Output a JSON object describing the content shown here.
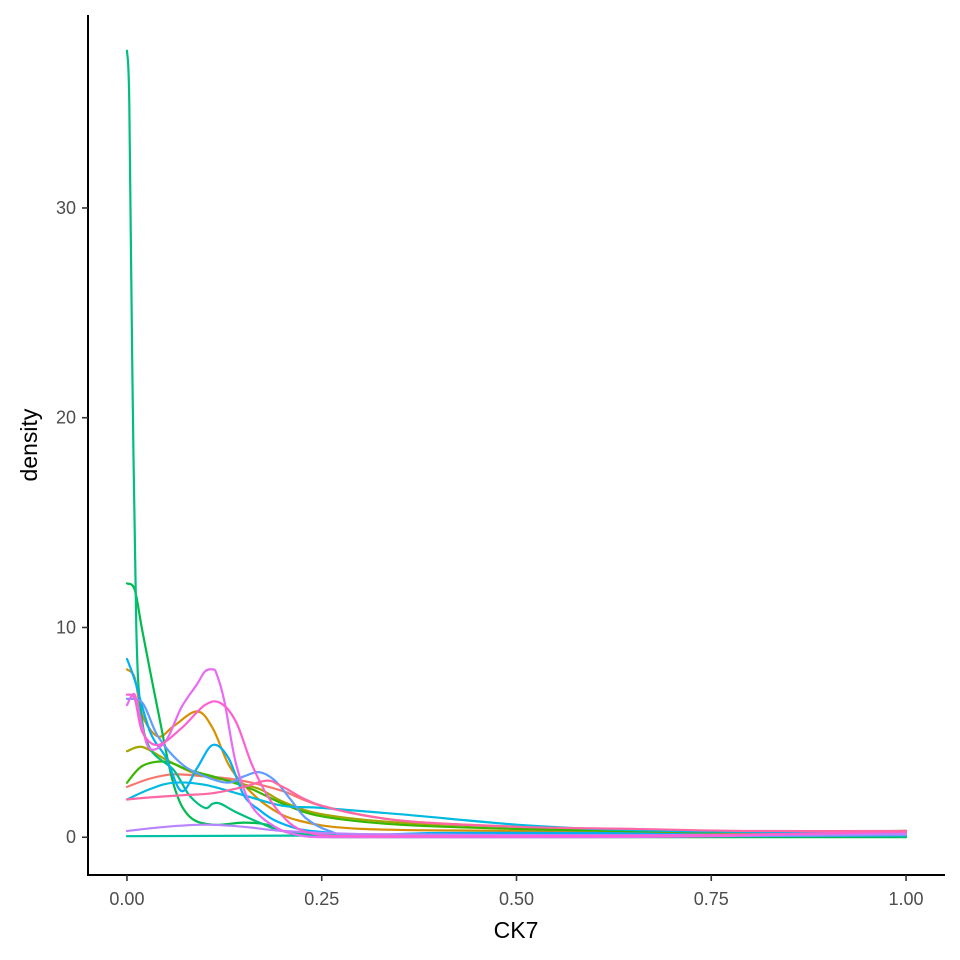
{
  "chart_data": {
    "type": "line",
    "title": "",
    "xlabel": "CK7",
    "ylabel": "density",
    "xlim": [
      -0.05,
      1.05
    ],
    "ylim": [
      -1.8,
      39.2
    ],
    "x_ticks": [
      0.0,
      0.25,
      0.5,
      0.75,
      1.0
    ],
    "x_tick_labels": [
      "0.00",
      "0.25",
      "0.50",
      "0.75",
      "1.00"
    ],
    "y_ticks": [
      0,
      10,
      20,
      30
    ],
    "y_tick_labels": [
      "0",
      "10",
      "20",
      "30"
    ],
    "grid": false,
    "legend": "none",
    "series": [
      {
        "color": "#F8766D",
        "x": [
          0.0,
          0.03,
          0.06,
          0.1,
          0.13,
          0.16,
          0.2,
          0.25,
          0.35,
          0.5,
          0.65,
          0.8,
          1.0
        ],
        "y": [
          2.4,
          2.8,
          3.0,
          2.9,
          2.8,
          2.6,
          2.2,
          1.5,
          0.8,
          0.5,
          0.3,
          0.25,
          0.3
        ]
      },
      {
        "color": "#D89000",
        "x": [
          0.0,
          0.01,
          0.02,
          0.04,
          0.06,
          0.09,
          0.11,
          0.13,
          0.15,
          0.18,
          0.22,
          0.3,
          0.5,
          0.75,
          1.0
        ],
        "y": [
          8.0,
          7.6,
          5.8,
          4.8,
          5.3,
          6.0,
          5.2,
          3.5,
          2.5,
          1.5,
          0.8,
          0.4,
          0.3,
          0.2,
          0.3
        ]
      },
      {
        "color": "#A3A500",
        "x": [
          0.0,
          0.02,
          0.05,
          0.09,
          0.13,
          0.17,
          0.2,
          0.25,
          0.35,
          0.5,
          0.65,
          0.8,
          1.0
        ],
        "y": [
          4.1,
          4.3,
          3.7,
          3.0,
          2.7,
          2.3,
          1.7,
          1.1,
          0.7,
          0.5,
          0.35,
          0.25,
          0.3
        ]
      },
      {
        "color": "#39B600",
        "x": [
          0.0,
          0.02,
          0.05,
          0.08,
          0.12,
          0.16,
          0.2,
          0.25,
          0.35,
          0.5,
          0.75,
          1.0
        ],
        "y": [
          2.6,
          3.4,
          3.6,
          3.2,
          2.8,
          2.3,
          1.6,
          1.0,
          0.6,
          0.4,
          0.25,
          0.3
        ]
      },
      {
        "color": "#00BB4E",
        "x": [
          0.0,
          0.01,
          0.02,
          0.04,
          0.06,
          0.08,
          0.11,
          0.15,
          0.18,
          0.2,
          0.23,
          0.28,
          0.4,
          0.6,
          0.8,
          1.0
        ],
        "y": [
          12.1,
          11.8,
          9.8,
          6.0,
          2.5,
          1.0,
          0.6,
          0.7,
          0.6,
          0.3,
          0.05,
          0.0,
          0.0,
          0.0,
          0.0,
          0.0
        ]
      },
      {
        "color": "#00BF7D",
        "x": [
          0.0,
          0.003,
          0.007,
          0.012,
          0.018,
          0.03,
          0.06,
          0.08,
          0.1,
          0.11,
          0.12,
          0.14,
          0.17,
          0.2,
          0.25,
          0.4,
          0.6,
          1.0
        ],
        "y": [
          37.5,
          35.0,
          22.0,
          10.0,
          6.0,
          4.2,
          3.2,
          2.0,
          1.4,
          1.6,
          1.6,
          1.2,
          0.7,
          0.3,
          0.1,
          0.05,
          0.05,
          0.05
        ]
      },
      {
        "color": "#00C1A3",
        "x": [
          0.0,
          0.4,
          0.6,
          0.8,
          1.0
        ],
        "y": [
          0.05,
          0.1,
          0.15,
          0.1,
          0.05
        ]
      },
      {
        "color": "#00BAE0",
        "x": [
          0.0,
          0.03,
          0.06,
          0.1,
          0.15,
          0.2,
          0.25,
          0.35,
          0.5,
          0.6,
          0.7,
          0.8,
          1.0
        ],
        "y": [
          1.8,
          2.3,
          2.6,
          2.5,
          2.0,
          1.5,
          1.4,
          1.1,
          0.6,
          0.4,
          0.3,
          0.25,
          0.2
        ]
      },
      {
        "color": "#00B0F6",
        "x": [
          0.0,
          0.01,
          0.03,
          0.05,
          0.07,
          0.09,
          0.11,
          0.13,
          0.15,
          0.17,
          0.19,
          0.22,
          0.25,
          0.3,
          0.4,
          0.6,
          0.8,
          1.0
        ],
        "y": [
          8.5,
          7.5,
          5.0,
          3.8,
          2.2,
          3.3,
          4.4,
          3.8,
          2.0,
          1.3,
          0.8,
          0.4,
          0.25,
          0.1,
          0.2,
          0.2,
          0.1,
          0.2
        ]
      },
      {
        "color": "#619CFF",
        "x": [
          0.0,
          0.02,
          0.04,
          0.07,
          0.1,
          0.13,
          0.15,
          0.17,
          0.19,
          0.21,
          0.23,
          0.26,
          0.3,
          0.5,
          0.75,
          1.0
        ],
        "y": [
          6.6,
          6.4,
          4.8,
          3.5,
          2.9,
          2.6,
          2.9,
          3.1,
          2.7,
          1.8,
          0.9,
          0.3,
          0.1,
          0.05,
          0.05,
          0.1
        ]
      },
      {
        "color": "#B983FF",
        "x": [
          0.0,
          0.05,
          0.1,
          0.15,
          0.2,
          0.3,
          0.5,
          0.75,
          1.0
        ],
        "y": [
          0.3,
          0.5,
          0.6,
          0.5,
          0.3,
          0.15,
          0.1,
          0.1,
          0.15
        ]
      },
      {
        "color": "#E76BF3",
        "x": [
          0.0,
          0.01,
          0.02,
          0.03,
          0.05,
          0.07,
          0.09,
          0.1,
          0.11,
          0.115,
          0.125,
          0.14,
          0.16,
          0.19,
          0.22,
          0.25,
          0.3,
          0.5,
          0.75,
          1.0
        ],
        "y": [
          6.3,
          6.8,
          5.2,
          4.2,
          4.6,
          6.2,
          7.3,
          7.9,
          8.0,
          7.8,
          6.5,
          3.5,
          1.5,
          0.5,
          0.1,
          0.0,
          0.0,
          0.0,
          0.05,
          0.3
        ]
      },
      {
        "color": "#FD61D1",
        "x": [
          0.0,
          0.01,
          0.02,
          0.04,
          0.07,
          0.1,
          0.12,
          0.14,
          0.16,
          0.18,
          0.2,
          0.22,
          0.25,
          0.3,
          0.5,
          0.75,
          1.0
        ],
        "y": [
          6.8,
          6.6,
          5.0,
          4.4,
          5.2,
          6.3,
          6.4,
          5.5,
          3.5,
          2.0,
          1.0,
          0.4,
          0.1,
          0.05,
          0.05,
          0.1,
          0.25
        ]
      },
      {
        "color": "#FF67A4",
        "x": [
          0.0,
          0.03,
          0.07,
          0.11,
          0.15,
          0.18,
          0.2,
          0.25,
          0.35,
          0.5,
          0.65,
          0.8,
          1.0
        ],
        "y": [
          1.8,
          1.9,
          2.0,
          2.1,
          2.4,
          2.7,
          2.4,
          1.5,
          0.8,
          0.5,
          0.4,
          0.3,
          0.3
        ]
      }
    ]
  }
}
